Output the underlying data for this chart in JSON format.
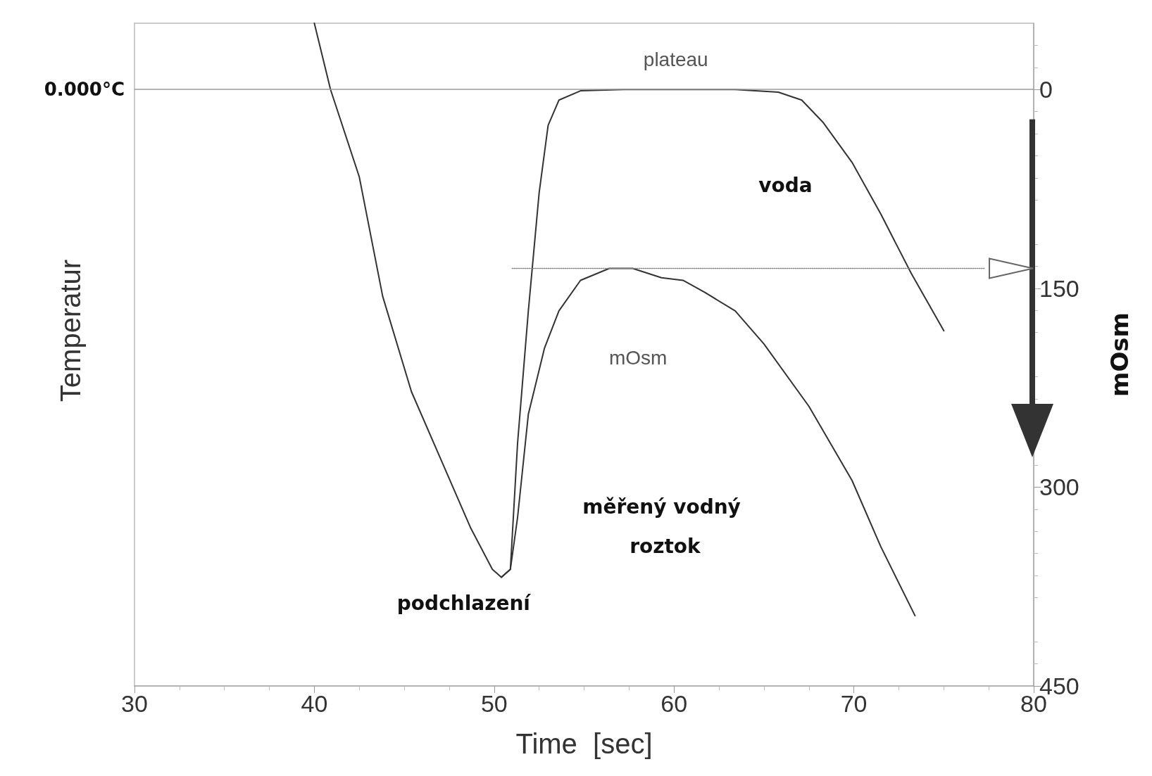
{
  "chart_data": {
    "type": "line",
    "xlabel": "Time  [sec]",
    "ylabel": "mOsm",
    "xlim": [
      30,
      80
    ],
    "xticks": [
      30,
      40,
      50,
      60,
      70,
      80
    ],
    "ylim": [
      450,
      -50
    ],
    "yticks": [
      0,
      150,
      300,
      450
    ],
    "grid": false,
    "marker": "none",
    "line_style": "solid",
    "series": [
      {
        "color": "#333333",
        "x": [
          40.0,
          40.9,
          42.5,
          43.8,
          45.4,
          47.0,
          48.7,
          49.9,
          50.4,
          50.9,
          51.3,
          51.9,
          52.5,
          53.0,
          53.6,
          54.8,
          57.2,
          63.4,
          65.8,
          67.1,
          68.3,
          69.9,
          71.5,
          73.2,
          75.0
        ],
        "values": [
          -50,
          0,
          66,
          156,
          228,
          278,
          331,
          362,
          368,
          362,
          267,
          167,
          78,
          27,
          8,
          1,
          0,
          0,
          2,
          8,
          25,
          55,
          94,
          139,
          182
        ]
      },
      {
        "color": "#333333",
        "x": [
          50.4,
          50.9,
          51.3,
          51.9,
          52.8,
          53.6,
          54.8,
          56.4,
          57.7,
          59.3,
          60.5,
          61.7,
          63.4,
          65.0,
          67.5,
          69.9,
          71.5,
          73.4
        ],
        "values": [
          368,
          362,
          323,
          245,
          195,
          167,
          144,
          135,
          135,
          142,
          144,
          153,
          167,
          192,
          239,
          295,
          345,
          397
        ]
      },
      {
        "color": "#888888",
        "line_style": "dotted",
        "x": [
          51,
          77.3
        ],
        "values": [
          135,
          135
        ]
      }
    ],
    "ref_lines": [
      {
        "axis": "y",
        "value": 0,
        "label": "0.000°C",
        "color": "#999999"
      }
    ],
    "annotations": [
      "Temperatur",
      "plateau",
      "voda",
      "mOsm",
      "měřený vodný roztok",
      "podchlazení"
    ]
  }
}
